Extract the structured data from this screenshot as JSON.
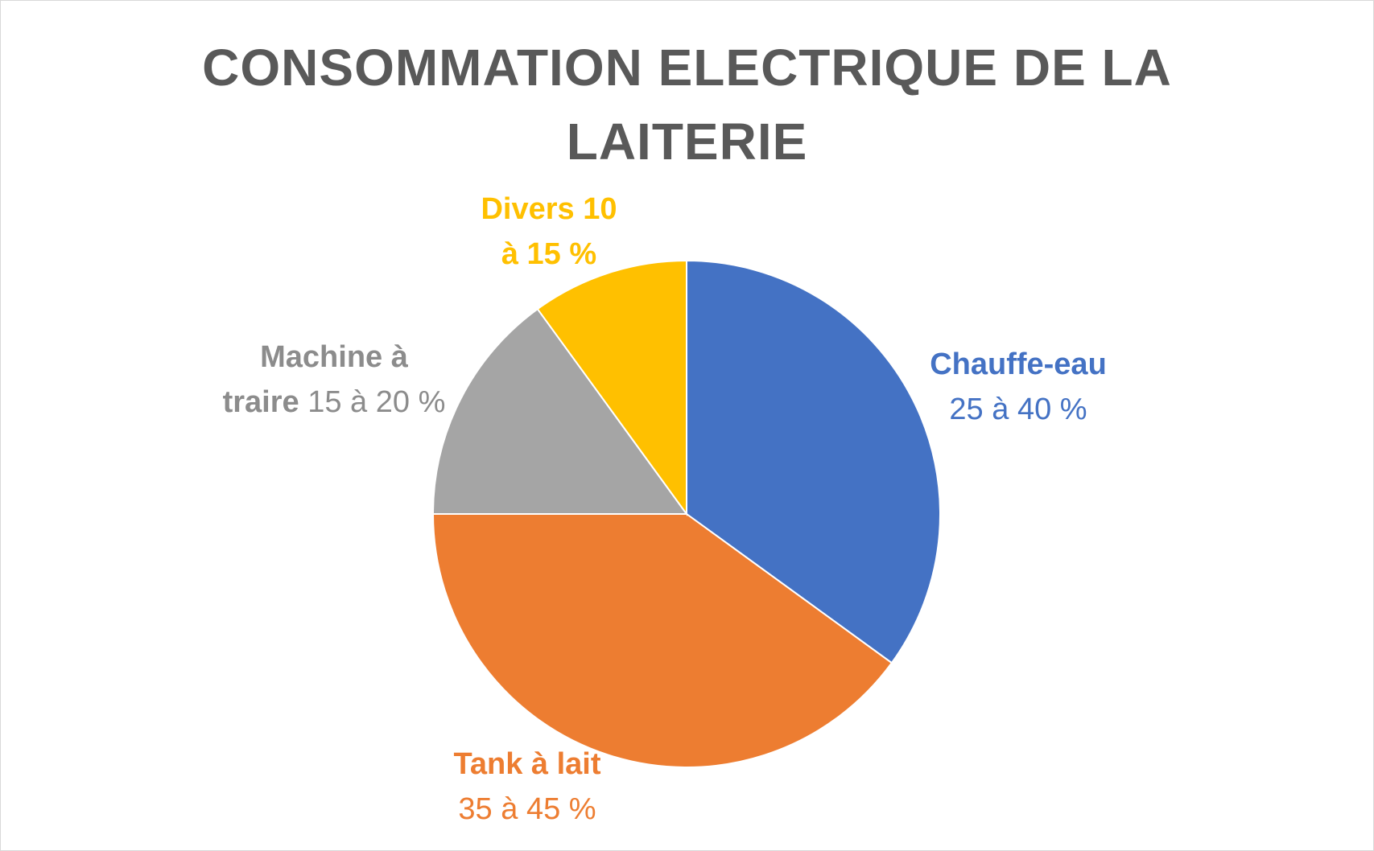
{
  "chart_data": {
    "type": "pie",
    "title_lines": [
      "CONSOMMATION ELECTRIQUE DE LA",
      "LAITERIE"
    ],
    "slices": [
      {
        "category": "Chauffe-eau",
        "range_label": "25 à 40 %",
        "value": 35,
        "color": "#4472C4"
      },
      {
        "category": "Tank à lait",
        "range_label": "35 à 45 %",
        "value": 40,
        "color": "#ED7D31"
      },
      {
        "category": "Machine à traire",
        "range_label": "15 à 20 %",
        "value": 15,
        "color": "#A5A5A5"
      },
      {
        "category": "Divers",
        "range_label": "10 à 15 %",
        "value": 10,
        "color": "#FFC000"
      }
    ],
    "legend": "none"
  },
  "labels": {
    "chauffe": {
      "name": "Chauffe-eau",
      "range": "25 à 40 %"
    },
    "tank": {
      "name": "Tank à lait",
      "range": "35 à 45 %"
    },
    "machine": {
      "name_line1": "Machine à",
      "name_line2": "traire",
      "range": "15 à 20 %"
    },
    "divers": {
      "line1": "Divers 10",
      "line2": "à 15 %"
    }
  }
}
